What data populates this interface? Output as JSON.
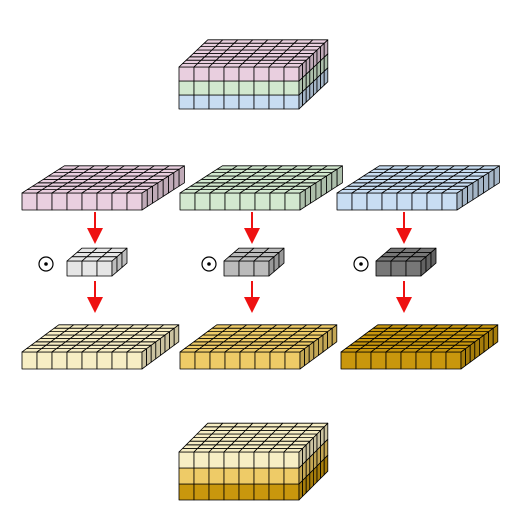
{
  "colors": {
    "input_channels": [
      "#e9cfdf",
      "#d2e8cf",
      "#c8ddf2"
    ],
    "kernels": [
      "#e6e6e6",
      "#bbbbbb",
      "#777777"
    ],
    "output_maps": [
      "#f7eec4",
      "#eecb67",
      "#c9970d"
    ],
    "arrow": "#ee1111",
    "edge": "#000000"
  },
  "diagram": {
    "operator_symbol": "odot-icon",
    "operator_count": 3,
    "description_glyph": "⊙"
  }
}
